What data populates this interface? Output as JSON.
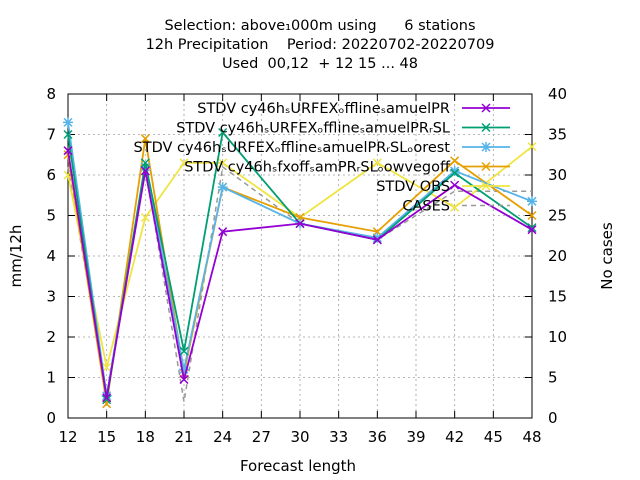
{
  "header": {
    "line1": "Selection: above₁000m using      6 stations",
    "line2": "12h Precipitation    Period: 20220702-20220709",
    "line3": "Used  00,12  + 12 15 ... 48"
  },
  "chart_data": {
    "type": "line",
    "xlabel": "Forecast length",
    "ylabel": "mm/12h",
    "y2label": "No cases",
    "xlim": [
      12,
      48
    ],
    "ylim": [
      0,
      8
    ],
    "y2lim": [
      0,
      40
    ],
    "xticks": [
      "12",
      "15",
      "18",
      "21",
      "24",
      "27",
      "30",
      "33",
      "36",
      "39",
      "42",
      "45",
      "48"
    ],
    "yticks": [
      "0",
      "1",
      "2",
      "3",
      "4",
      "5",
      "6",
      "7",
      "8"
    ],
    "y2ticks": [
      "0",
      "5",
      "10",
      "15",
      "20",
      "25",
      "30",
      "35",
      "40"
    ],
    "grid": true,
    "legend_position": "top-right",
    "x": [
      12,
      15,
      18,
      21,
      24,
      30,
      36,
      42,
      48
    ],
    "series": [
      {
        "name": "STDV cy46hₛURFEXₒfflineₛamuelPR",
        "color": "#9400d3",
        "marker": "x",
        "axis": "y",
        "values": [
          6.6,
          0.5,
          6.1,
          0.95,
          4.6,
          4.8,
          4.4,
          5.75,
          4.65
        ]
      },
      {
        "name": "STDV cy46hₛURFEXₒfflineₛamuelPRᵣSL",
        "color": "#009e73",
        "marker": "x",
        "axis": "y",
        "values": [
          7.0,
          0.45,
          6.3,
          1.65,
          7.05,
          4.8,
          4.4,
          6.05,
          4.7
        ]
      },
      {
        "name": "STDV cy46hₛURFEXₒfflineₛamuelPRᵣSLₒorest",
        "color": "#56b4e9",
        "marker": "*",
        "axis": "y",
        "values": [
          7.3,
          0.55,
          6.2,
          1.2,
          5.7,
          4.8,
          4.45,
          6.1,
          5.35
        ]
      },
      {
        "name": "STDV cy46hₛfxoffₛamPRᵣSLₒowvegoff",
        "color": "#e69f00",
        "marker": "x",
        "axis": "y",
        "values": [
          6.5,
          0.35,
          6.9,
          1.1,
          5.7,
          4.95,
          4.6,
          6.35,
          5.0
        ]
      },
      {
        "name": "STDV OBS",
        "color": "#f0e442",
        "marker": "x",
        "axis": "y",
        "values": [
          6.0,
          1.25,
          4.95,
          6.3,
          6.3,
          4.95,
          6.3,
          5.2,
          6.7
        ]
      },
      {
        "name": "CASES",
        "color": "#999999",
        "marker": "none",
        "dash": true,
        "axis": "y2",
        "values": [
          31,
          3,
          31,
          2,
          31,
          24,
          22,
          28,
          28
        ]
      }
    ]
  }
}
